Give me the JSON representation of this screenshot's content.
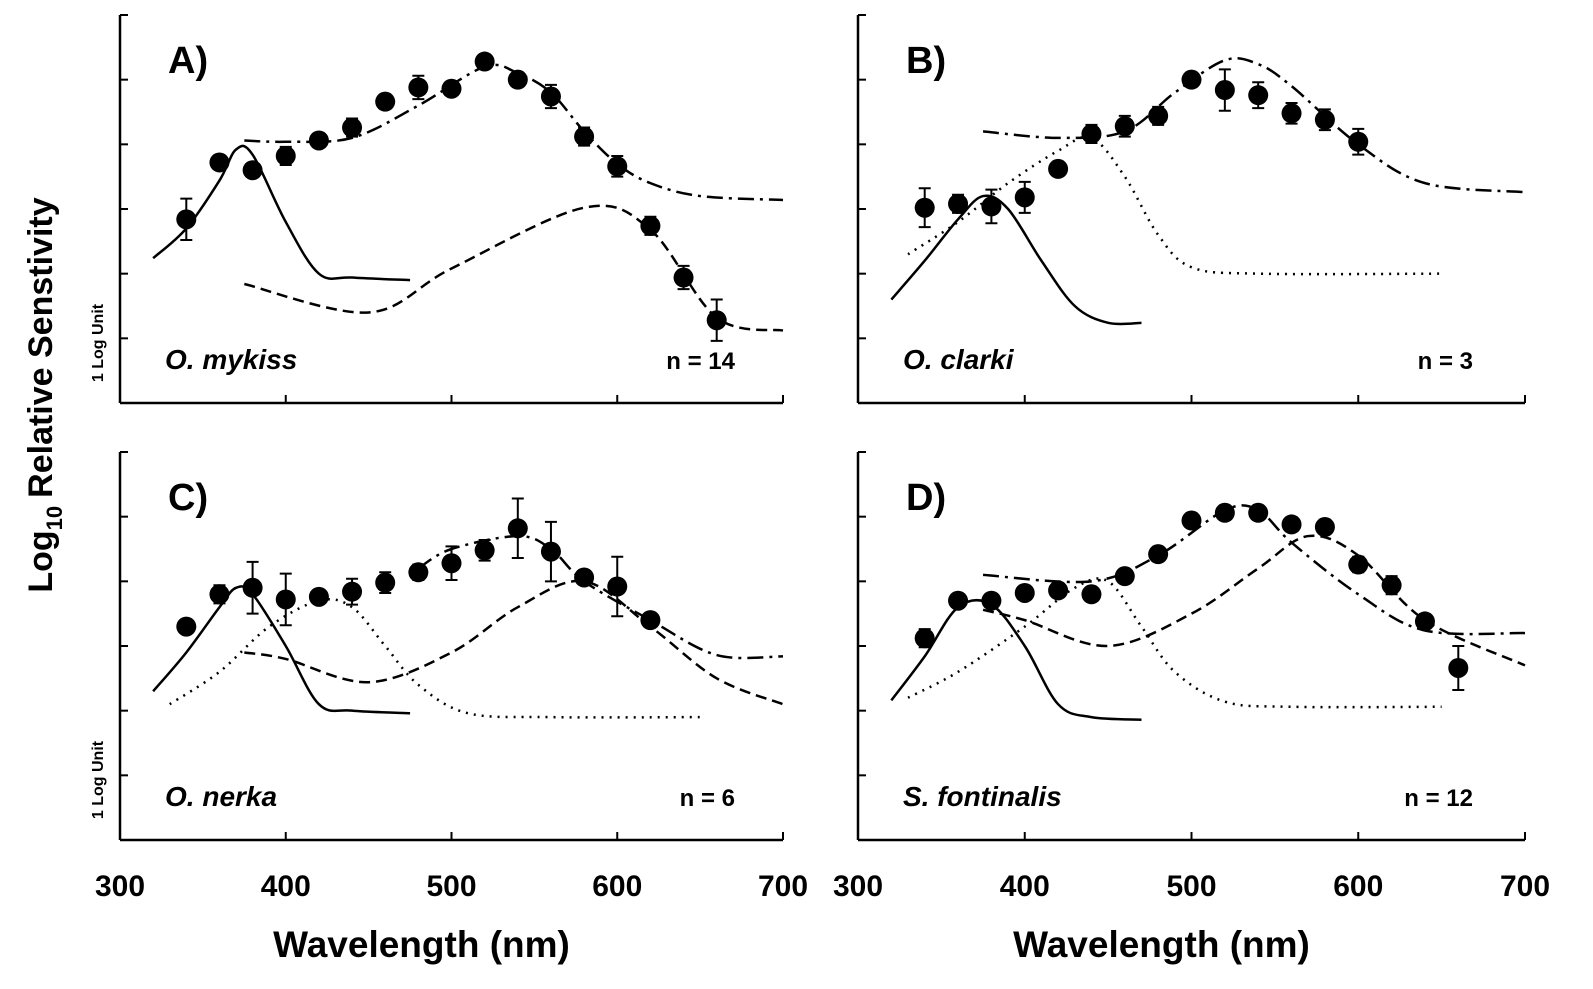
{
  "ylabel": {
    "base": "Log",
    "sub": "10",
    "rest": "Relative Senstivity"
  },
  "chart_data": [
    {
      "type": "scatter",
      "title": "A)",
      "species": "O. mykiss",
      "n_label": "n = 14",
      "scale_label": "1 Log Unit",
      "xlim": [
        300,
        700
      ],
      "xticks": [
        300,
        400,
        500,
        600,
        700
      ],
      "ylim": [
        0,
        3
      ],
      "yticks": [
        0,
        0.5,
        1,
        1.5,
        2,
        2.5,
        3
      ],
      "x": [
        340,
        360,
        380,
        400,
        420,
        440,
        460,
        480,
        500,
        520,
        540,
        560,
        580,
        600,
        620,
        640,
        660
      ],
      "values": [
        1.42,
        1.86,
        1.8,
        1.91,
        2.03,
        2.13,
        2.33,
        2.44,
        2.43,
        2.64,
        2.5,
        2.37,
        2.06,
        1.83,
        1.37,
        0.97,
        0.64
      ],
      "errors": [
        0.16,
        0.05,
        0.05,
        0.07,
        0.05,
        0.07,
        0.05,
        0.09,
        0.05,
        0.05,
        0.05,
        0.09,
        0.07,
        0.08,
        0.07,
        0.09,
        0.16
      ],
      "lines": [
        {
          "style": "solid",
          "x": [
            320,
            340,
            360,
            370,
            380,
            400,
            420,
            440,
            475
          ],
          "values": [
            1.12,
            1.35,
            1.72,
            1.96,
            1.92,
            1.4,
            1.0,
            0.97,
            0.95
          ]
        },
        {
          "style": "dashdot",
          "x": [
            375,
            400,
            440,
            480,
            520,
            540,
            560,
            580,
            600,
            620,
            650,
            700
          ],
          "values": [
            2.03,
            2.02,
            2.05,
            2.3,
            2.6,
            2.55,
            2.4,
            2.1,
            1.85,
            1.7,
            1.6,
            1.57
          ]
        },
        {
          "style": "dashed",
          "x": [
            375,
            450,
            500,
            580,
            620,
            660,
            700
          ],
          "values": [
            0.92,
            0.7,
            1.04,
            1.51,
            1.34,
            0.66,
            0.56
          ]
        }
      ]
    },
    {
      "type": "scatter",
      "title": "B)",
      "species": "O. clarki",
      "n_label": "n = 3",
      "xlim": [
        300,
        700
      ],
      "xticks": [
        300,
        400,
        500,
        600,
        700
      ],
      "ylim": [
        0,
        3
      ],
      "yticks": [
        0,
        0.5,
        1,
        1.5,
        2,
        2.5,
        3
      ],
      "x": [
        340,
        360,
        380,
        400,
        420,
        440,
        460,
        480,
        500,
        520,
        540,
        560,
        580,
        600
      ],
      "values": [
        1.51,
        1.54,
        1.52,
        1.59,
        1.81,
        2.08,
        2.14,
        2.22,
        2.5,
        2.42,
        2.38,
        2.24,
        2.19,
        2.02
      ],
      "errors": [
        0.15,
        0.07,
        0.13,
        0.12,
        0.05,
        0.07,
        0.08,
        0.07,
        0.05,
        0.16,
        0.1,
        0.08,
        0.08,
        0.1
      ],
      "lines": [
        {
          "style": "solid",
          "x": [
            320,
            340,
            360,
            375,
            390,
            410,
            430,
            450,
            470
          ],
          "values": [
            0.8,
            1.1,
            1.42,
            1.6,
            1.5,
            1.1,
            0.75,
            0.62,
            0.62
          ]
        },
        {
          "style": "dotted",
          "x": [
            330,
            360,
            390,
            420,
            440,
            460,
            480,
            500,
            540,
            650
          ],
          "values": [
            1.15,
            1.4,
            1.7,
            1.95,
            2.05,
            1.75,
            1.3,
            1.05,
            1.0,
            1.0
          ]
        },
        {
          "style": "dashdot",
          "x": [
            375,
            420,
            460,
            490,
            520,
            540,
            560,
            600,
            640,
            700
          ],
          "values": [
            2.1,
            2.05,
            2.1,
            2.4,
            2.65,
            2.62,
            2.45,
            2.0,
            1.7,
            1.63
          ]
        }
      ]
    },
    {
      "type": "scatter",
      "title": "C)",
      "species": "O. nerka",
      "n_label": "n = 6",
      "scale_label": "1 Log Unit",
      "xlabel": "Wavelength (nm)",
      "xlim": [
        300,
        700
      ],
      "xticks": [
        300,
        400,
        500,
        600,
        700
      ],
      "ylim": [
        0,
        3
      ],
      "yticks": [
        0,
        0.5,
        1,
        1.5,
        2,
        2.5,
        3
      ],
      "x": [
        340,
        360,
        380,
        400,
        420,
        440,
        460,
        480,
        500,
        520,
        540,
        560,
        580,
        600,
        620
      ],
      "values": [
        1.65,
        1.9,
        1.95,
        1.86,
        1.88,
        1.92,
        1.99,
        2.07,
        2.14,
        2.24,
        2.41,
        2.23,
        2.03,
        1.96,
        1.7
      ],
      "errors": [
        0,
        0.07,
        0.2,
        0.2,
        0.05,
        0.1,
        0.08,
        0.06,
        0.13,
        0.08,
        0.23,
        0.23,
        0.05,
        0.23,
        0.05
      ],
      "lines": [
        {
          "style": "solid",
          "x": [
            320,
            340,
            360,
            370,
            380,
            400,
            420,
            440,
            475
          ],
          "values": [
            1.15,
            1.45,
            1.8,
            1.95,
            1.9,
            1.5,
            1.05,
            1.0,
            0.98
          ]
        },
        {
          "style": "dotted",
          "x": [
            330,
            360,
            390,
            420,
            440,
            460,
            480,
            510,
            560,
            650
          ],
          "values": [
            1.05,
            1.3,
            1.65,
            1.85,
            1.8,
            1.5,
            1.2,
            0.98,
            0.95,
            0.95
          ]
        },
        {
          "style": "dashed",
          "x": [
            375,
            400,
            450,
            500,
            540,
            580,
            620,
            660,
            700
          ],
          "values": [
            1.45,
            1.4,
            1.22,
            1.45,
            1.8,
            2.0,
            1.65,
            1.25,
            1.05
          ]
        },
        {
          "style": "dashdot",
          "x": [
            480,
            500,
            540,
            560,
            580,
            620,
            660,
            700
          ],
          "values": [
            2.1,
            2.25,
            2.35,
            2.25,
            2.0,
            1.7,
            1.43,
            1.42
          ]
        }
      ]
    },
    {
      "type": "scatter",
      "title": "D)",
      "species": "S. fontinalis",
      "n_label": "n = 12",
      "xlabel": "Wavelength (nm)",
      "xlim": [
        300,
        700
      ],
      "xticks": [
        300,
        400,
        500,
        600,
        700
      ],
      "ylim": [
        0,
        3
      ],
      "yticks": [
        0,
        0.5,
        1,
        1.5,
        2,
        2.5,
        3
      ],
      "x": [
        340,
        360,
        380,
        400,
        420,
        440,
        460,
        480,
        500,
        520,
        540,
        560,
        580,
        600,
        620,
        640,
        660
      ],
      "values": [
        1.56,
        1.85,
        1.85,
        1.91,
        1.93,
        1.9,
        2.04,
        2.21,
        2.47,
        2.53,
        2.53,
        2.44,
        2.42,
        2.13,
        1.97,
        1.69,
        1.33
      ],
      "errors": [
        0.07,
        0.04,
        0.04,
        0.05,
        0.04,
        0.04,
        0.05,
        0.05,
        0.05,
        0.04,
        0.05,
        0.04,
        0.04,
        0.06,
        0.07,
        0.04,
        0.17
      ],
      "lines": [
        {
          "style": "solid",
          "x": [
            320,
            340,
            360,
            380,
            400,
            420,
            440,
            470
          ],
          "values": [
            1.08,
            1.42,
            1.8,
            1.82,
            1.5,
            1.05,
            0.95,
            0.93
          ]
        },
        {
          "style": "dotted",
          "x": [
            330,
            360,
            400,
            430,
            450,
            470,
            490,
            520,
            560,
            650
          ],
          "values": [
            1.1,
            1.3,
            1.65,
            1.95,
            2.0,
            1.65,
            1.3,
            1.07,
            1.03,
            1.03
          ]
        },
        {
          "style": "dashed",
          "x": [
            375,
            400,
            450,
            500,
            540,
            570,
            600,
            640,
            700
          ],
          "values": [
            1.78,
            1.7,
            1.5,
            1.75,
            2.1,
            2.35,
            2.2,
            1.7,
            1.35
          ]
        },
        {
          "style": "dashdot",
          "x": [
            375,
            440,
            480,
            520,
            540,
            560,
            600,
            640,
            700
          ],
          "values": [
            2.05,
            2.0,
            2.2,
            2.55,
            2.55,
            2.3,
            1.9,
            1.62,
            1.6
          ]
        }
      ]
    }
  ]
}
